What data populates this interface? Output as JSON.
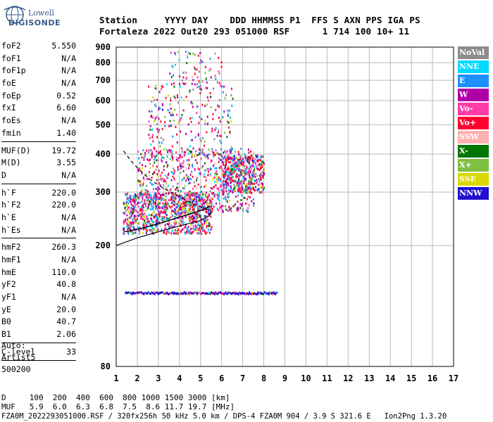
{
  "logo": {
    "line1": "Lowell",
    "line2": "DIGISONDE"
  },
  "header": {
    "row1": "Station     YYYY DAY    DDD HHMMSS P1  FFS S AXN PPS IGA PS",
    "row2": "Fortaleza 2022 Out20 293 051000 RSF      1 714 100 10+ 11"
  },
  "params": [
    {
      "k": "foF2",
      "v": "5.550"
    },
    {
      "k": "foF1",
      "v": "N/A"
    },
    {
      "k": "foF1p",
      "v": "N/A"
    },
    {
      "k": "foE",
      "v": "N/A"
    },
    {
      "k": "foEp",
      "v": "0.52"
    },
    {
      "k": "fxI",
      "v": "6.60"
    },
    {
      "k": "foEs",
      "v": "N/A"
    },
    {
      "k": "fmin",
      "v": "1.40"
    },
    {
      "sep": true
    },
    {
      "k": "MUF(D)",
      "v": "19.72"
    },
    {
      "k": "M(D)",
      "v": "3.55"
    },
    {
      "k": "D",
      "v": "N/A"
    },
    {
      "sep": true
    },
    {
      "k": "h`F",
      "v": "220.0"
    },
    {
      "k": "h`F2",
      "v": "220.0"
    },
    {
      "k": "h`E",
      "v": "N/A"
    },
    {
      "k": "h`Es",
      "v": "N/A"
    },
    {
      "sep": true
    },
    {
      "k": "hmF2",
      "v": "260.3"
    },
    {
      "k": "hmF1",
      "v": "N/A"
    },
    {
      "k": "hmE",
      "v": "110.0"
    },
    {
      "k": "yF2",
      "v": "40.8"
    },
    {
      "k": "yF1",
      "v": "N/A"
    },
    {
      "k": "yE",
      "v": "20.0"
    },
    {
      "k": "B0",
      "v": "40.7"
    },
    {
      "k": "B1",
      "v": "2.06"
    },
    {
      "sep": true
    },
    {
      "k": "C-level",
      "v": "33"
    },
    {
      "sep": true
    }
  ],
  "auto": {
    "line1": "Auto:",
    "line2": "Artist5",
    "line3": "500200"
  },
  "legend": [
    {
      "label": "NoVal",
      "color": "#8c8c8c"
    },
    {
      "label": "NNE",
      "color": "#00d8ff"
    },
    {
      "label": "E",
      "color": "#1e90ff"
    },
    {
      "label": "W",
      "color": "#b000a8"
    },
    {
      "label": "Vo-",
      "color": "#ff3ca8"
    },
    {
      "label": "Vo+",
      "color": "#ff0030"
    },
    {
      "label": "SSW",
      "color": "#ffb0b0"
    },
    {
      "label": "X-",
      "color": "#007800"
    },
    {
      "label": "X+",
      "color": "#80c040"
    },
    {
      "label": "SSE",
      "color": "#d8d800"
    },
    {
      "label": "NNW",
      "color": "#2010d0"
    }
  ],
  "footer": {
    "line1": "D     100  200  400  600  800 1000 1500 3000 [km]",
    "line2": "MUF   5.9  6.0  6.3  6.8  7.5  8.6 11.7 19.7 [MHz]",
    "line3": "FZA0M_2022293051000.RSF / 320fx256h 50 kHz 5.0 km / DPS-4 FZA0M 904 / 3.9 S 321.6 E   Ion2Png 1.3.20"
  },
  "chart_data": {
    "type": "scatter",
    "xlim": [
      1,
      17
    ],
    "ylim": [
      80,
      900
    ],
    "x_ticks": [
      1,
      2,
      3,
      4,
      5,
      6,
      7,
      8,
      9,
      10,
      11,
      12,
      13,
      14,
      15,
      16,
      17
    ],
    "y_ticks": [
      80,
      200,
      300,
      400,
      500,
      600,
      700,
      800,
      900
    ],
    "y_scale": "log",
    "grid": true,
    "profile_solid": [
      [
        1.4,
        222
      ],
      [
        2,
        226
      ],
      [
        3,
        236
      ],
      [
        4,
        248
      ],
      [
        4.8,
        258
      ],
      [
        5.2,
        264
      ],
      [
        5.45,
        270
      ]
    ],
    "profile_solid_lower": [
      [
        1.0,
        200
      ],
      [
        2,
        212
      ],
      [
        3,
        222
      ],
      [
        4,
        232
      ],
      [
        5,
        242
      ],
      [
        5.4,
        250
      ],
      [
        5.5,
        256
      ],
      [
        5.45,
        262
      ]
    ],
    "profile_dashed": [
      [
        1.35,
        410
      ],
      [
        1.7,
        380
      ],
      [
        2.1,
        355
      ],
      [
        2.6,
        330
      ],
      [
        3.2,
        310
      ],
      [
        3.8,
        295
      ],
      [
        4.4,
        280
      ],
      [
        5.0,
        268
      ],
      [
        5.4,
        262
      ]
    ],
    "es_trace": {
      "x_start": 1.4,
      "x_end": 8.6,
      "height": 140
    },
    "regions": [
      {
        "x": [
          1.3,
          5.5
        ],
        "h": [
          220,
          300
        ],
        "density": 1.0
      },
      {
        "x": [
          2.0,
          7.5
        ],
        "h": [
          260,
          420
        ],
        "density": 0.8
      },
      {
        "x": [
          2.5,
          6.5
        ],
        "h": [
          400,
          700
        ],
        "density": 0.25
      },
      {
        "x": [
          3.5,
          6.0
        ],
        "h": [
          650,
          880
        ],
        "density": 0.08
      },
      {
        "x": [
          6.0,
          8.0
        ],
        "h": [
          300,
          400
        ],
        "density": 0.5
      }
    ]
  }
}
